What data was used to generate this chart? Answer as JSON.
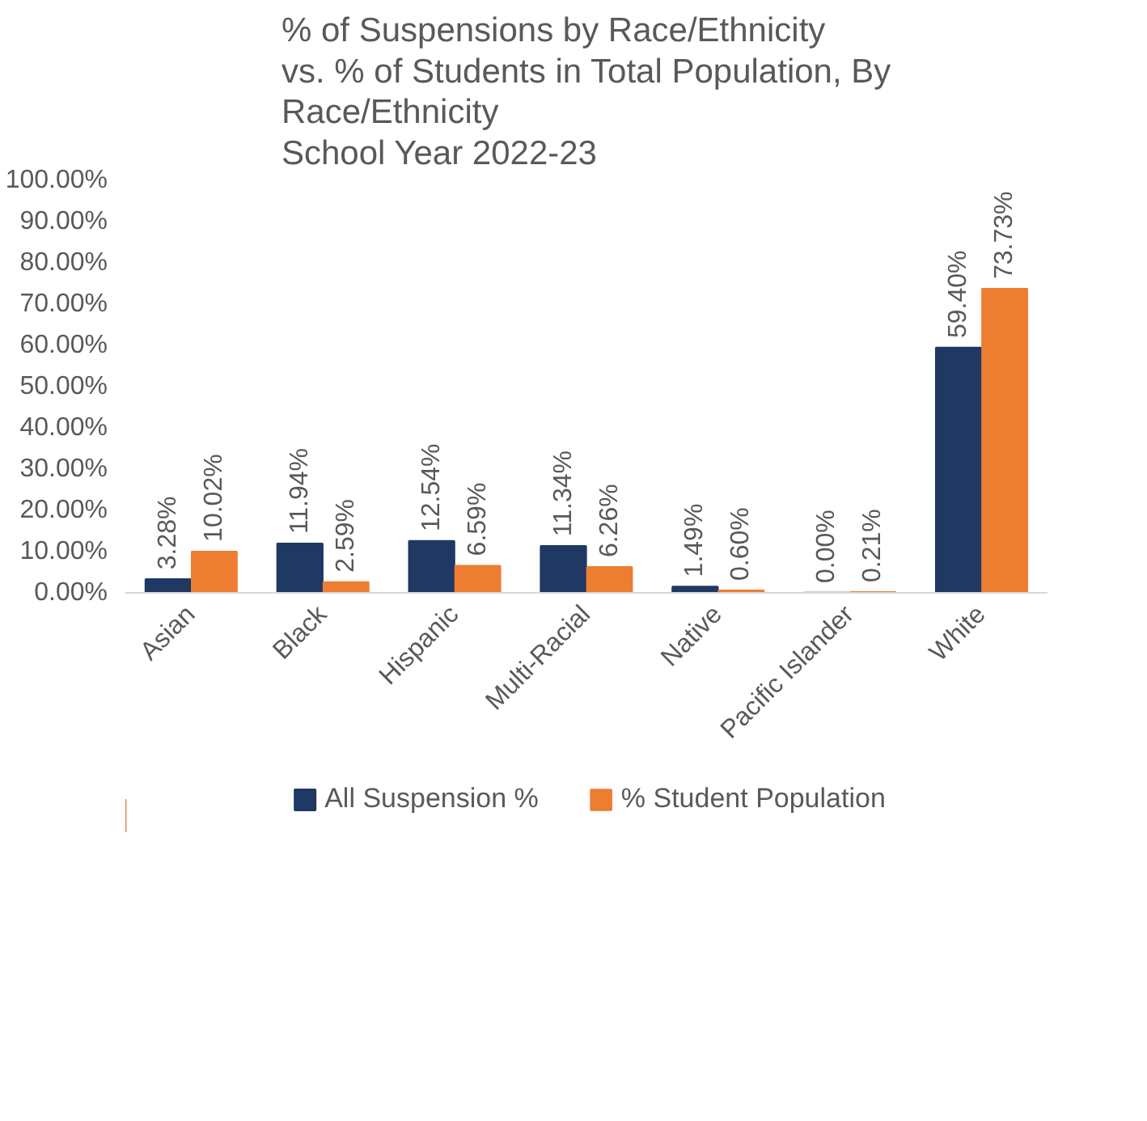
{
  "chart_data": {
    "type": "bar",
    "title": "% of Suspensions by Race/Ethnicity\nvs. % of Students in Total Population, By\nRace/Ethnicity\nSchool Year 2022-23",
    "categories": [
      "Asian",
      "Black",
      "Hispanic",
      "Multi-Racial",
      "Native",
      "Pacific Islander",
      "White"
    ],
    "series": [
      {
        "name": "All Suspension %",
        "color": "#1f3864",
        "values": [
          3.28,
          11.94,
          12.54,
          11.34,
          1.49,
          0.0,
          59.4
        ],
        "value_labels": [
          "3.28%",
          "11.94%",
          "12.54%",
          "11.34%",
          "1.49%",
          "0.00%",
          "59.40%"
        ]
      },
      {
        "name": "% Student Population",
        "color": "#ed7d31",
        "values": [
          10.02,
          2.59,
          6.59,
          6.26,
          0.6,
          0.21,
          73.73
        ],
        "value_labels": [
          "10.02%",
          "2.59%",
          "6.59%",
          "6.26%",
          "0.60%",
          "0.21%",
          "73.73%"
        ]
      }
    ],
    "ylim": [
      0,
      100
    ],
    "yticks": [
      {
        "value": 0,
        "label": "0.00%"
      },
      {
        "value": 10,
        "label": "10.00%"
      },
      {
        "value": 20,
        "label": "20.00%"
      },
      {
        "value": 30,
        "label": "30.00%"
      },
      {
        "value": 40,
        "label": "40.00%"
      },
      {
        "value": 50,
        "label": "50.00%"
      },
      {
        "value": 60,
        "label": "60.00%"
      },
      {
        "value": 70,
        "label": "70.00%"
      },
      {
        "value": 80,
        "label": "80.00%"
      },
      {
        "value": 90,
        "label": "90.00%"
      },
      {
        "value": 100,
        "label": "100.00%"
      }
    ],
    "grid": false,
    "legend": "bottom"
  }
}
